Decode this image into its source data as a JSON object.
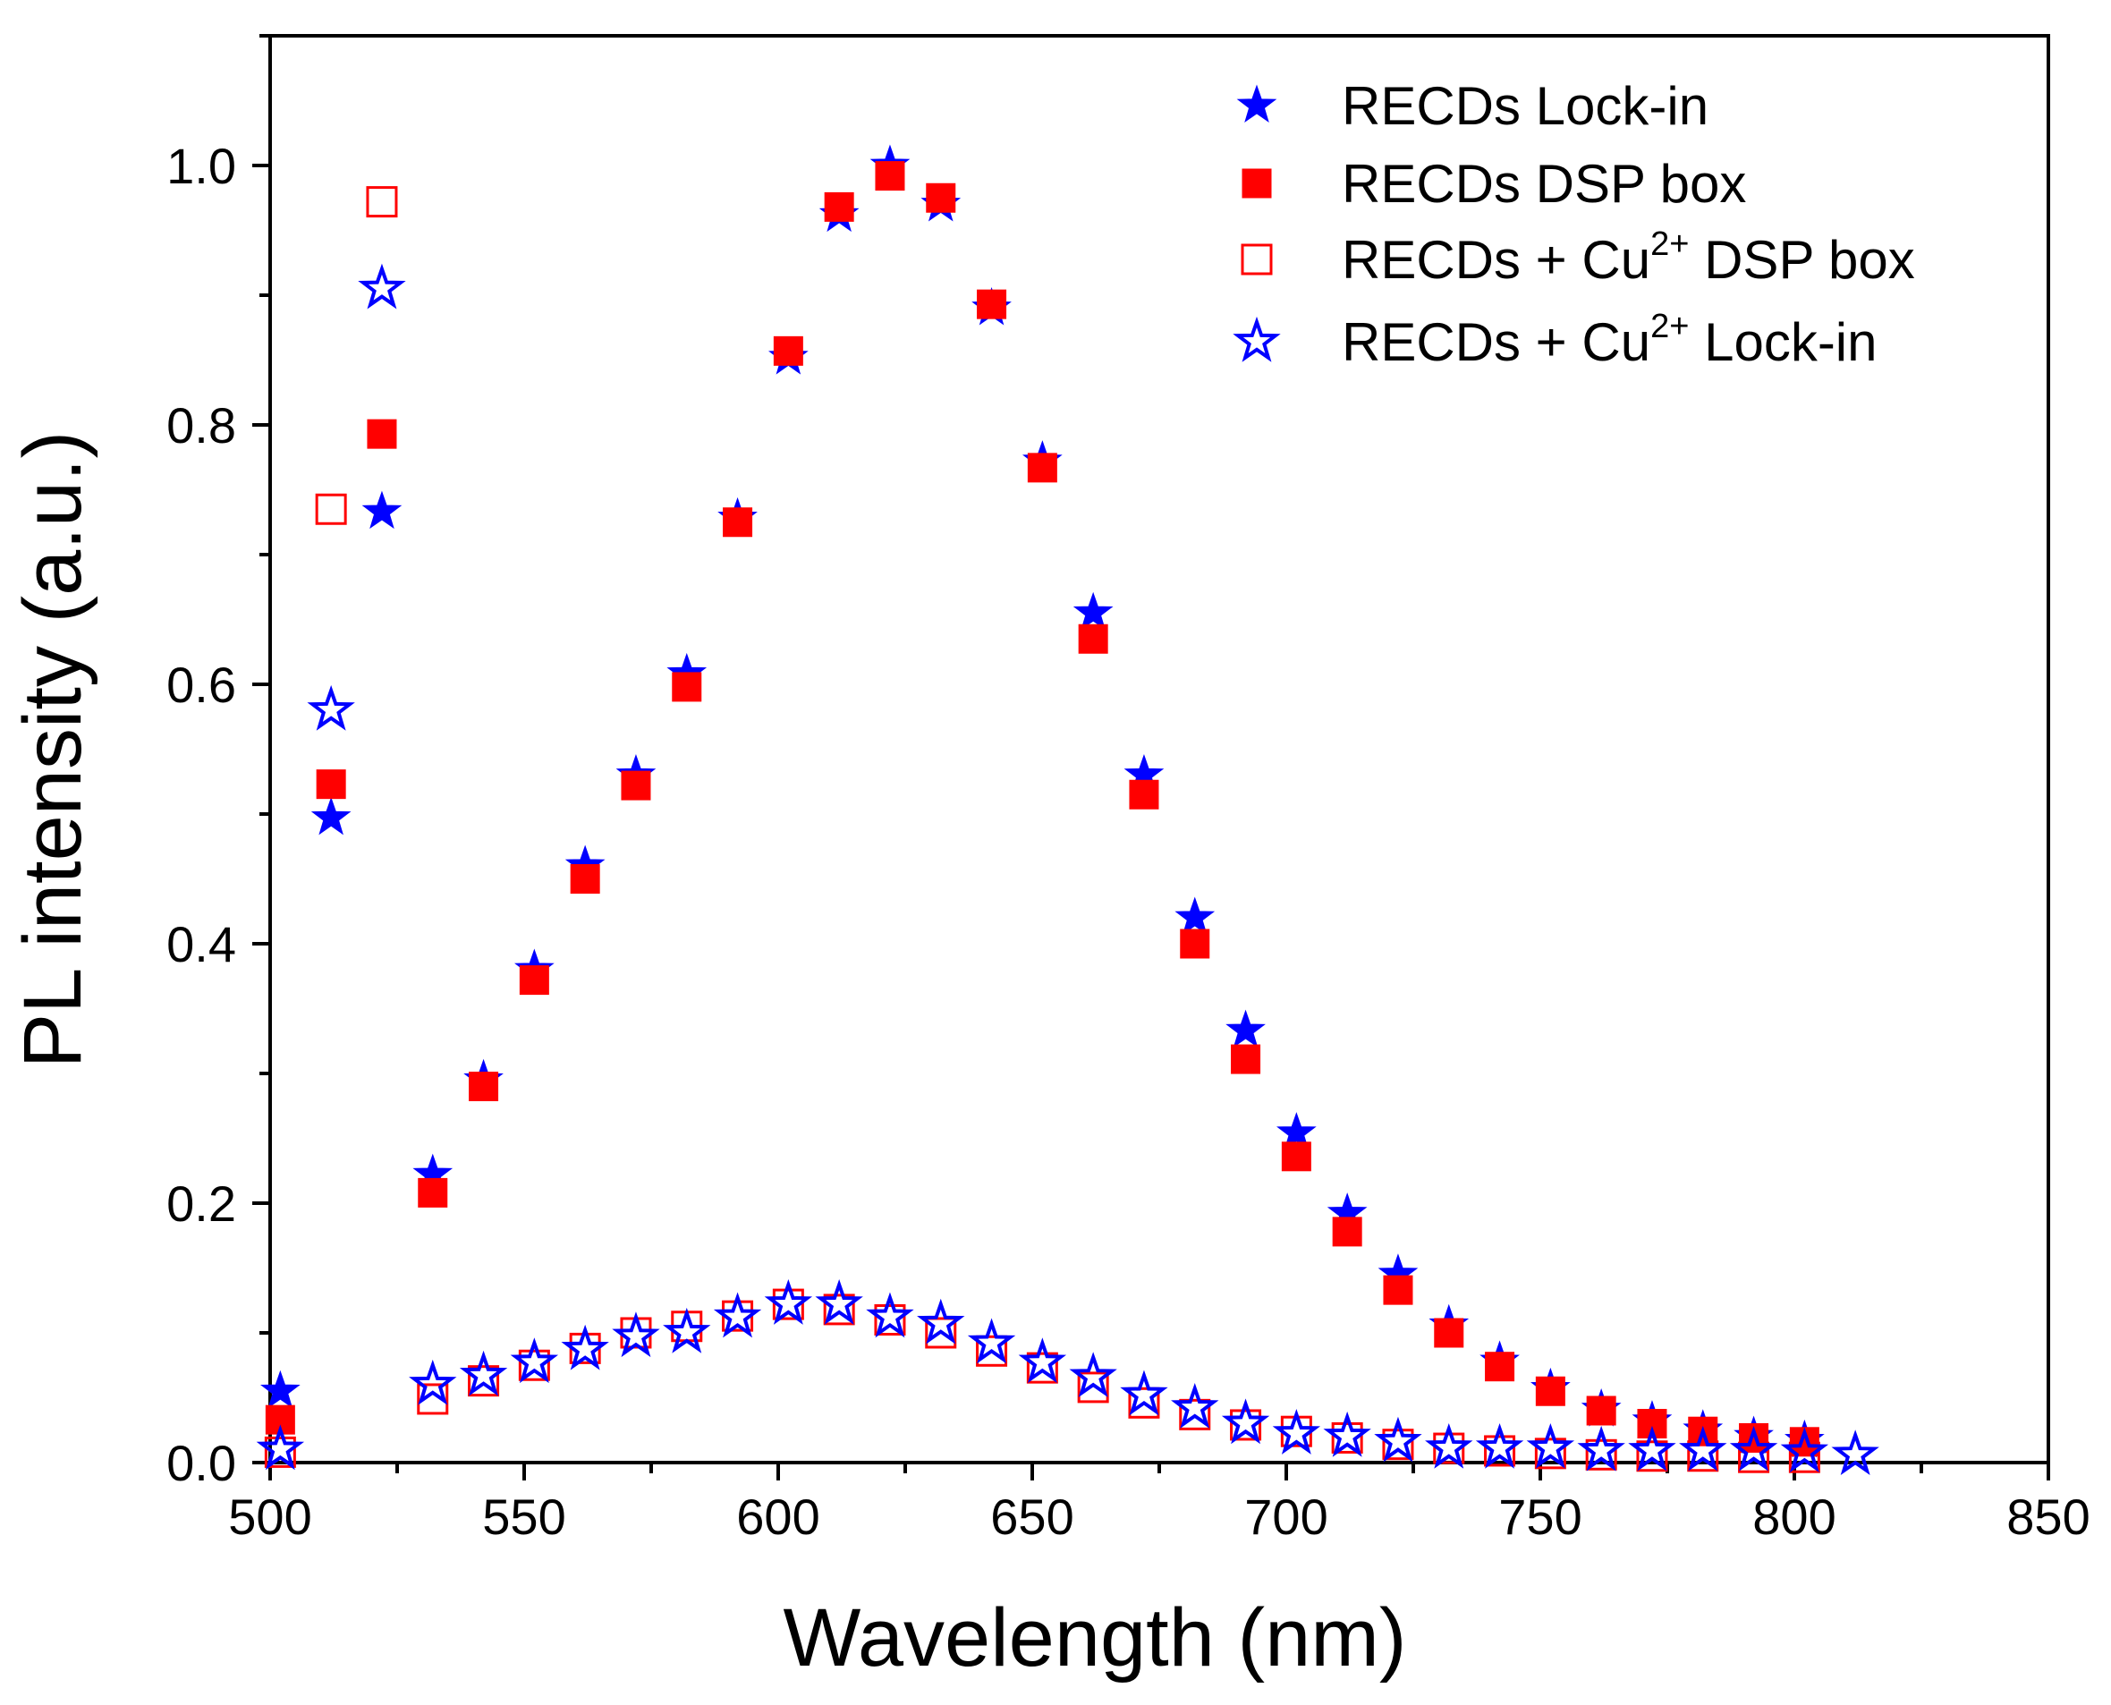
{
  "chart_data": {
    "type": "scatter",
    "title": "",
    "xlabel": "Wavelength (nm)",
    "ylabel": "PL intensity (a.u.)",
    "xlim": [
      500,
      850
    ],
    "ylim": [
      0,
      1.1
    ],
    "x_ticks": [
      "500",
      "550",
      "600",
      "650",
      "700",
      "750",
      "800",
      "850"
    ],
    "y_ticks": [
      "0.0",
      "0.2",
      "0.4",
      "0.6",
      "0.8",
      "1.0"
    ],
    "grid": false,
    "legend_position": "top-right",
    "series": [
      {
        "name": "RECDs Lock-in",
        "legend_parts": [
          "RECDs Lock-in"
        ],
        "marker": "star",
        "filled": true,
        "color": "#0000ff",
        "x": [
          502,
          512,
          522,
          532,
          542,
          552,
          562,
          572,
          582,
          592,
          602,
          612,
          622,
          632,
          642,
          652,
          662,
          672,
          682,
          692,
          702,
          712,
          722,
          732,
          742,
          752,
          762,
          772,
          782,
          792,
          802
        ],
        "y": [
          0.055,
          0.497,
          0.733,
          0.222,
          0.295,
          0.38,
          0.46,
          0.53,
          0.608,
          0.728,
          0.852,
          0.962,
          1.0,
          0.97,
          0.89,
          0.772,
          0.655,
          0.53,
          0.42,
          0.333,
          0.254,
          0.192,
          0.145,
          0.106,
          0.078,
          0.057,
          0.041,
          0.032,
          0.025,
          0.02,
          0.017
        ]
      },
      {
        "name": "RECDs DSP box",
        "legend_parts": [
          "RECDs DSP box"
        ],
        "marker": "square",
        "filled": true,
        "color": "#ff0000",
        "x": [
          502,
          512,
          522,
          532,
          542,
          552,
          562,
          572,
          582,
          592,
          602,
          612,
          622,
          632,
          642,
          652,
          662,
          672,
          682,
          692,
          702,
          712,
          722,
          732,
          742,
          752,
          762,
          772,
          782,
          792,
          802
        ],
        "y": [
          0.033,
          0.523,
          0.793,
          0.208,
          0.29,
          0.372,
          0.45,
          0.522,
          0.598,
          0.725,
          0.857,
          0.968,
          0.992,
          0.975,
          0.893,
          0.767,
          0.635,
          0.515,
          0.4,
          0.311,
          0.236,
          0.178,
          0.133,
          0.1,
          0.074,
          0.055,
          0.04,
          0.03,
          0.024,
          0.019,
          0.016
        ]
      },
      {
        "name": "RECDs + Cu2+ DSP box",
        "legend_parts": [
          "RECDs + Cu",
          "2+",
          " DSP box"
        ],
        "marker": "square",
        "filled": false,
        "color": "#ff0000",
        "x": [
          502,
          512,
          522,
          532,
          542,
          552,
          562,
          572,
          582,
          592,
          602,
          612,
          622,
          632,
          642,
          652,
          662,
          672,
          682,
          692,
          702,
          712,
          722,
          732,
          742,
          752,
          762,
          772,
          782,
          792,
          802
        ],
        "y": [
          0.008,
          0.735,
          0.972,
          0.049,
          0.063,
          0.075,
          0.088,
          0.1,
          0.105,
          0.113,
          0.122,
          0.118,
          0.11,
          0.1,
          0.086,
          0.073,
          0.058,
          0.046,
          0.037,
          0.029,
          0.024,
          0.019,
          0.014,
          0.011,
          0.009,
          0.007,
          0.006,
          0.005,
          0.005,
          0.004,
          0.004
        ]
      },
      {
        "name": "RECDs + Cu2+ Lock-in",
        "legend_parts": [
          "RECDs + Cu",
          "2+",
          " Lock-in"
        ],
        "marker": "star",
        "filled": false,
        "color": "#0000ff",
        "x": [
          502,
          512,
          522,
          532,
          542,
          552,
          562,
          572,
          582,
          592,
          602,
          612,
          622,
          632,
          642,
          652,
          662,
          672,
          682,
          692,
          702,
          712,
          722,
          732,
          742,
          752,
          762,
          772,
          782,
          792,
          802,
          812
        ],
        "y": [
          0.01,
          0.58,
          0.905,
          0.06,
          0.067,
          0.077,
          0.087,
          0.097,
          0.1,
          0.112,
          0.122,
          0.122,
          0.112,
          0.107,
          0.092,
          0.077,
          0.066,
          0.052,
          0.042,
          0.03,
          0.022,
          0.02,
          0.016,
          0.011,
          0.011,
          0.011,
          0.009,
          0.009,
          0.009,
          0.009,
          0.008,
          0.006
        ]
      }
    ]
  }
}
